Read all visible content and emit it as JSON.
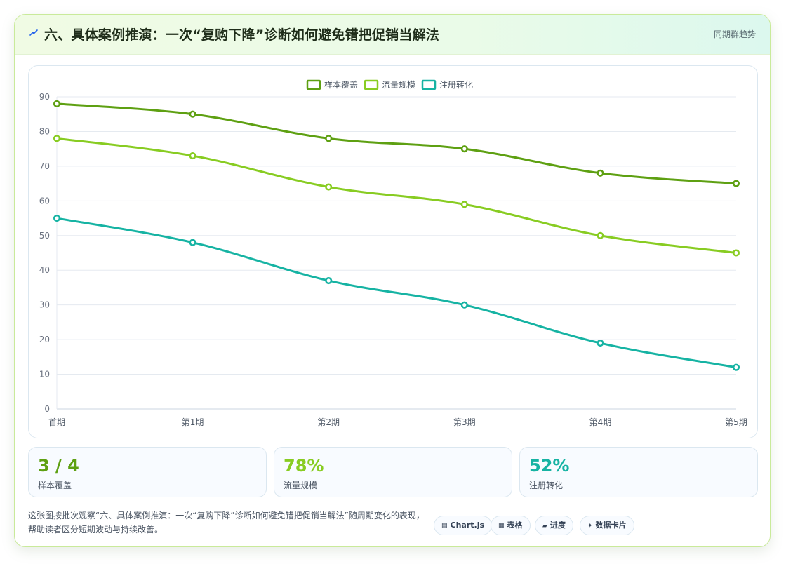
{
  "header": {
    "title": "六、具体案例推演：一次“复购下降”诊断如何避免错把促销当解法",
    "link": "同期群趋势"
  },
  "colors": {
    "series1": "#5ea012",
    "series2": "#88cc22",
    "series3": "#16b3a3",
    "icon": "#2563eb"
  },
  "chart_data": {
    "type": "line",
    "categories": [
      "首期",
      "第1期",
      "第2期",
      "第3期",
      "第4期",
      "第5期"
    ],
    "ylim": [
      0,
      90
    ],
    "yticks": [
      0,
      10,
      20,
      30,
      40,
      50,
      60,
      70,
      80,
      90
    ],
    "legend_position": "top",
    "grid": true,
    "series": [
      {
        "name": "样本覆盖",
        "values": [
          88,
          85,
          78,
          75,
          68,
          65
        ],
        "color": "#5ea012"
      },
      {
        "name": "流量规模",
        "values": [
          78,
          73,
          64,
          59,
          50,
          45
        ],
        "color": "#88cc22"
      },
      {
        "name": "注册转化",
        "values": [
          55,
          48,
          37,
          30,
          19,
          12
        ],
        "color": "#16b3a3"
      }
    ]
  },
  "stats": [
    {
      "value": "3 / 4",
      "label": "样本覆盖",
      "color": "#5ea012"
    },
    {
      "value": "78%",
      "label": "流量规模",
      "color": "#88cc22"
    },
    {
      "value": "52%",
      "label": "注册转化",
      "color": "#16b3a3"
    }
  ],
  "description": "这张图按批次观察“六、具体案例推演：一次“复购下降”诊断如何避免错把促销当解法”随周期变化的表现，帮助读者区分短期波动与持续改善。",
  "pills": [
    {
      "icon": "▤",
      "label": "Chart.js"
    },
    {
      "icon": "▦",
      "label": "表格"
    },
    {
      "icon": "▰",
      "label": "进度"
    },
    {
      "icon": "✦",
      "label": "数据卡片"
    }
  ]
}
